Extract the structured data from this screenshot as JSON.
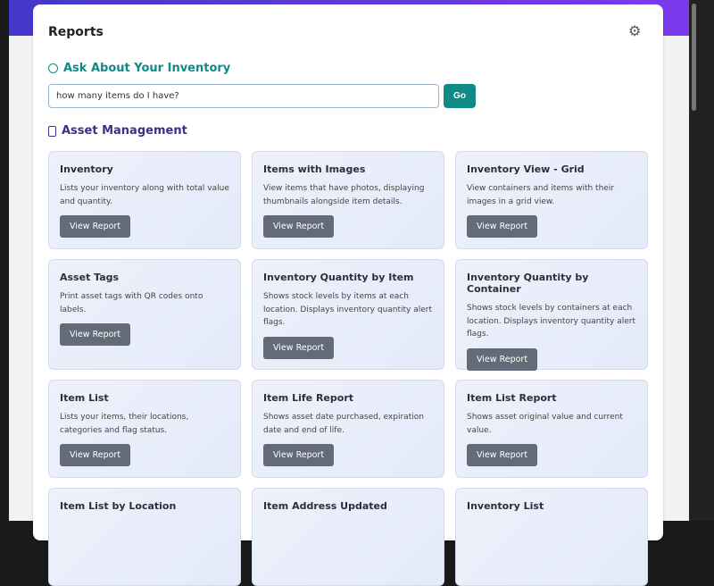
{
  "header": {
    "title": "Reports"
  },
  "ask": {
    "heading": "Ask About Your Inventory",
    "query": "how many items do I have?",
    "go_label": "Go"
  },
  "section": {
    "heading": "Asset Management"
  },
  "button_label": "View Report",
  "reports": [
    {
      "title": "Inventory",
      "desc": "Lists your inventory along with total value and quantity."
    },
    {
      "title": "Items with Images",
      "desc": "View items that have photos, displaying thumbnails alongside item details."
    },
    {
      "title": "Inventory View - Grid",
      "desc": "View containers and items with their images in a grid view."
    },
    {
      "title": "Asset Tags",
      "desc": "Print asset tags with QR codes onto labels."
    },
    {
      "title": "Inventory Quantity by Item",
      "desc": "Shows stock levels by items at each location. Displays inventory quantity alert flags."
    },
    {
      "title": "Inventory Quantity by Container",
      "desc": "Shows stock levels by containers at each location. Displays inventory quantity alert flags."
    },
    {
      "title": "Item List",
      "desc": "Lists your items, their locations, categories and flag status."
    },
    {
      "title": "Item Life Report",
      "desc": "Shows asset date purchased, expiration date and end of life."
    },
    {
      "title": "Item List Report",
      "desc": "Shows asset original value and current value."
    },
    {
      "title": "Item List by Location",
      "desc": ""
    },
    {
      "title": "Item Address Updated",
      "desc": ""
    },
    {
      "title": "Inventory List",
      "desc": ""
    }
  ]
}
